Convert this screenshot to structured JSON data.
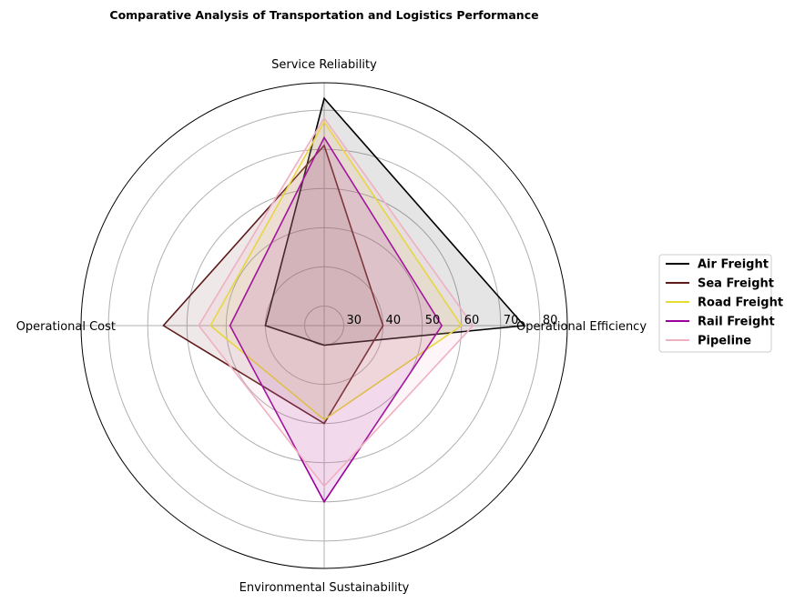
{
  "chart_data": {
    "type": "radar",
    "title": "Comparative Analysis of Transportation and Logistics Performance",
    "axes": [
      "Operational Efficiency",
      "Service Reliability",
      "Operational Cost",
      "Environmental Sustainability"
    ],
    "r_ticks": [
      "30",
      "40",
      "50",
      "60",
      "70",
      "80"
    ],
    "rlim": [
      25,
      87
    ],
    "grid": true,
    "legend_position": "right",
    "series": [
      {
        "name": "Air Freight",
        "color": "#000000",
        "fill_opacity": 0.1,
        "values": [
          76,
          83,
          40,
          30
        ]
      },
      {
        "name": "Sea Freight",
        "color": "#5c1a1a",
        "fill_opacity": 0.1,
        "values": [
          40,
          71,
          66,
          50
        ]
      },
      {
        "name": "Road Freight",
        "color": "#e6dc32",
        "fill_opacity": 0.1,
        "values": [
          60,
          77,
          54,
          49
        ]
      },
      {
        "name": "Rail Freight",
        "color": "#990099",
        "fill_opacity": 0.12,
        "values": [
          55,
          73,
          49,
          70
        ]
      },
      {
        "name": "Pipeline",
        "color": "#efb0c0",
        "fill_opacity": 0.12,
        "values": [
          63,
          78,
          57,
          66
        ]
      }
    ]
  }
}
